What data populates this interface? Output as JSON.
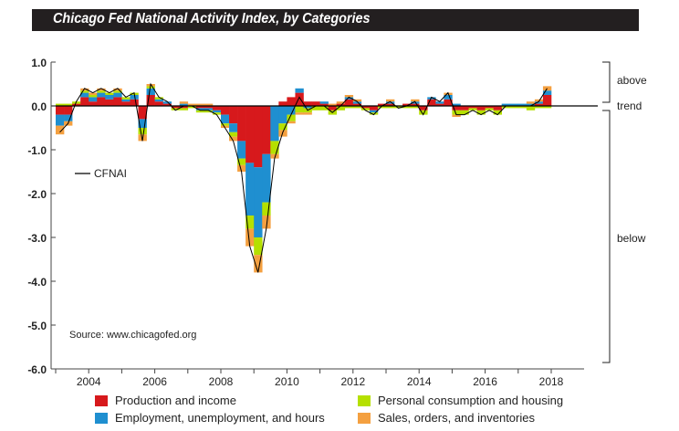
{
  "title": "Chicago Fed National Activity Index, by Categories",
  "chart_data": {
    "type": "bar",
    "stacked": true,
    "title": "Chicago Fed National Activity Index, by Categories",
    "ylim": [
      -6.0,
      1.0
    ],
    "yticks": [
      "1.0",
      "0.0",
      "-1.0",
      "-2.0",
      "-3.0",
      "-4.0",
      "-5.0",
      "-6.0"
    ],
    "ytick_values": [
      1,
      0,
      -1,
      -2,
      -3,
      -4,
      -5,
      -6
    ],
    "xticks": [
      "2004",
      "2006",
      "2008",
      "2010",
      "2012",
      "2014",
      "2016",
      "2018"
    ],
    "xtick_values": [
      2004,
      2006,
      2008,
      2010,
      2012,
      2014,
      2016,
      2018
    ],
    "x_start": 2003,
    "x_note": "quarterly approximation",
    "categories": [
      "2003Q1",
      "2003Q2",
      "2003Q3",
      "2003Q4",
      "2004Q1",
      "2004Q2",
      "2004Q3",
      "2004Q4",
      "2005Q1",
      "2005Q2",
      "2005Q3",
      "2005Q4",
      "2006Q1",
      "2006Q2",
      "2006Q3",
      "2006Q4",
      "2007Q1",
      "2007Q2",
      "2007Q3",
      "2007Q4",
      "2008Q1",
      "2008Q2",
      "2008Q3",
      "2008Q4",
      "2009Q1",
      "2009Q2",
      "2009Q3",
      "2009Q4",
      "2010Q1",
      "2010Q2",
      "2010Q3",
      "2010Q4",
      "2011Q1",
      "2011Q2",
      "2011Q3",
      "2011Q4",
      "2012Q1",
      "2012Q2",
      "2012Q3",
      "2012Q4",
      "2013Q1",
      "2013Q2",
      "2013Q3",
      "2013Q4",
      "2014Q1",
      "2014Q2",
      "2014Q3",
      "2014Q4",
      "2015Q1",
      "2015Q2",
      "2015Q3",
      "2015Q4",
      "2016Q1",
      "2016Q2",
      "2016Q3",
      "2016Q4",
      "2017Q1",
      "2017Q2",
      "2017Q3",
      "2017Q4"
    ],
    "series": [
      {
        "name": "Production and income",
        "color": "#d7191c",
        "values": [
          -0.2,
          -0.2,
          0.05,
          0.2,
          0.1,
          0.2,
          0.15,
          0.2,
          0.1,
          0.15,
          -0.3,
          0.25,
          0.1,
          0.05,
          -0.05,
          -0.05,
          0.0,
          -0.05,
          -0.05,
          -0.1,
          -0.2,
          -0.4,
          -0.8,
          -1.3,
          -1.4,
          -1.1,
          0.0,
          0.1,
          0.2,
          0.3,
          0.1,
          0.1,
          0.05,
          -0.1,
          0.05,
          0.15,
          0.05,
          -0.05,
          -0.1,
          0.05,
          0.05,
          0.0,
          0.05,
          0.05,
          -0.1,
          0.15,
          0.05,
          0.15,
          -0.1,
          -0.1,
          -0.05,
          -0.1,
          -0.05,
          -0.1,
          0.0,
          0.0,
          0.0,
          0.0,
          0.05,
          0.25
        ]
      },
      {
        "name": "Employment, unemployment, and hours",
        "color": "#1f8fd0",
        "values": [
          -0.25,
          -0.15,
          0.0,
          0.1,
          0.1,
          0.1,
          0.1,
          0.1,
          0.05,
          0.1,
          -0.2,
          0.15,
          0.05,
          0.05,
          0.0,
          0.05,
          0.0,
          -0.05,
          -0.05,
          -0.05,
          -0.2,
          -0.2,
          -0.4,
          -1.2,
          -1.6,
          -1.1,
          -0.8,
          -0.4,
          -0.2,
          0.1,
          -0.05,
          0.0,
          0.05,
          0.0,
          0.0,
          0.05,
          0.05,
          0.0,
          -0.05,
          0.0,
          0.05,
          0.0,
          0.0,
          0.05,
          0.0,
          0.05,
          0.05,
          0.1,
          0.05,
          0.0,
          0.0,
          0.0,
          0.0,
          0.0,
          0.05,
          0.05,
          0.05,
          0.05,
          0.05,
          0.1
        ]
      },
      {
        "name": "Personal consumption and housing",
        "color": "#b5e000",
        "values": [
          0.05,
          0.05,
          0.05,
          0.05,
          0.05,
          0.05,
          0.05,
          0.05,
          0.05,
          0.05,
          -0.15,
          0.05,
          0.05,
          0.0,
          -0.05,
          -0.05,
          -0.05,
          -0.05,
          -0.05,
          -0.05,
          -0.05,
          -0.1,
          -0.15,
          -0.3,
          -0.4,
          -0.3,
          -0.3,
          -0.15,
          -0.15,
          -0.15,
          -0.1,
          -0.1,
          -0.1,
          -0.1,
          -0.1,
          -0.05,
          -0.05,
          -0.05,
          -0.05,
          -0.05,
          -0.05,
          -0.05,
          -0.05,
          -0.05,
          -0.1,
          0.0,
          0.0,
          0.0,
          -0.1,
          -0.1,
          -0.05,
          -0.1,
          -0.05,
          -0.1,
          -0.05,
          -0.05,
          -0.05,
          -0.1,
          -0.05,
          -0.05
        ]
      },
      {
        "name": "Sales, orders, and inventories",
        "color": "#f4a040",
        "values": [
          -0.2,
          -0.1,
          0.0,
          0.05,
          0.05,
          0.05,
          0.0,
          0.05,
          0.0,
          0.0,
          -0.15,
          0.05,
          0.0,
          0.0,
          0.0,
          0.05,
          0.05,
          0.05,
          0.05,
          0.0,
          -0.05,
          -0.1,
          -0.15,
          -0.4,
          -0.4,
          -0.3,
          -0.1,
          -0.15,
          -0.05,
          -0.05,
          -0.05,
          0.0,
          0.0,
          0.05,
          0.05,
          0.05,
          0.05,
          0.0,
          0.0,
          0.0,
          0.05,
          0.0,
          0.0,
          0.05,
          0.0,
          0.0,
          0.0,
          0.05,
          -0.05,
          0.0,
          0.0,
          0.0,
          0.0,
          0.0,
          0.0,
          0.0,
          0.0,
          0.05,
          0.05,
          0.1
        ]
      }
    ],
    "line_series": {
      "name": "CFNAI",
      "color": "#000000"
    },
    "annotations": {
      "above": "above",
      "trend": "trend",
      "below": "below",
      "source": "Source: www.chicagofed.org"
    },
    "legend": "bottom",
    "grid": false
  }
}
